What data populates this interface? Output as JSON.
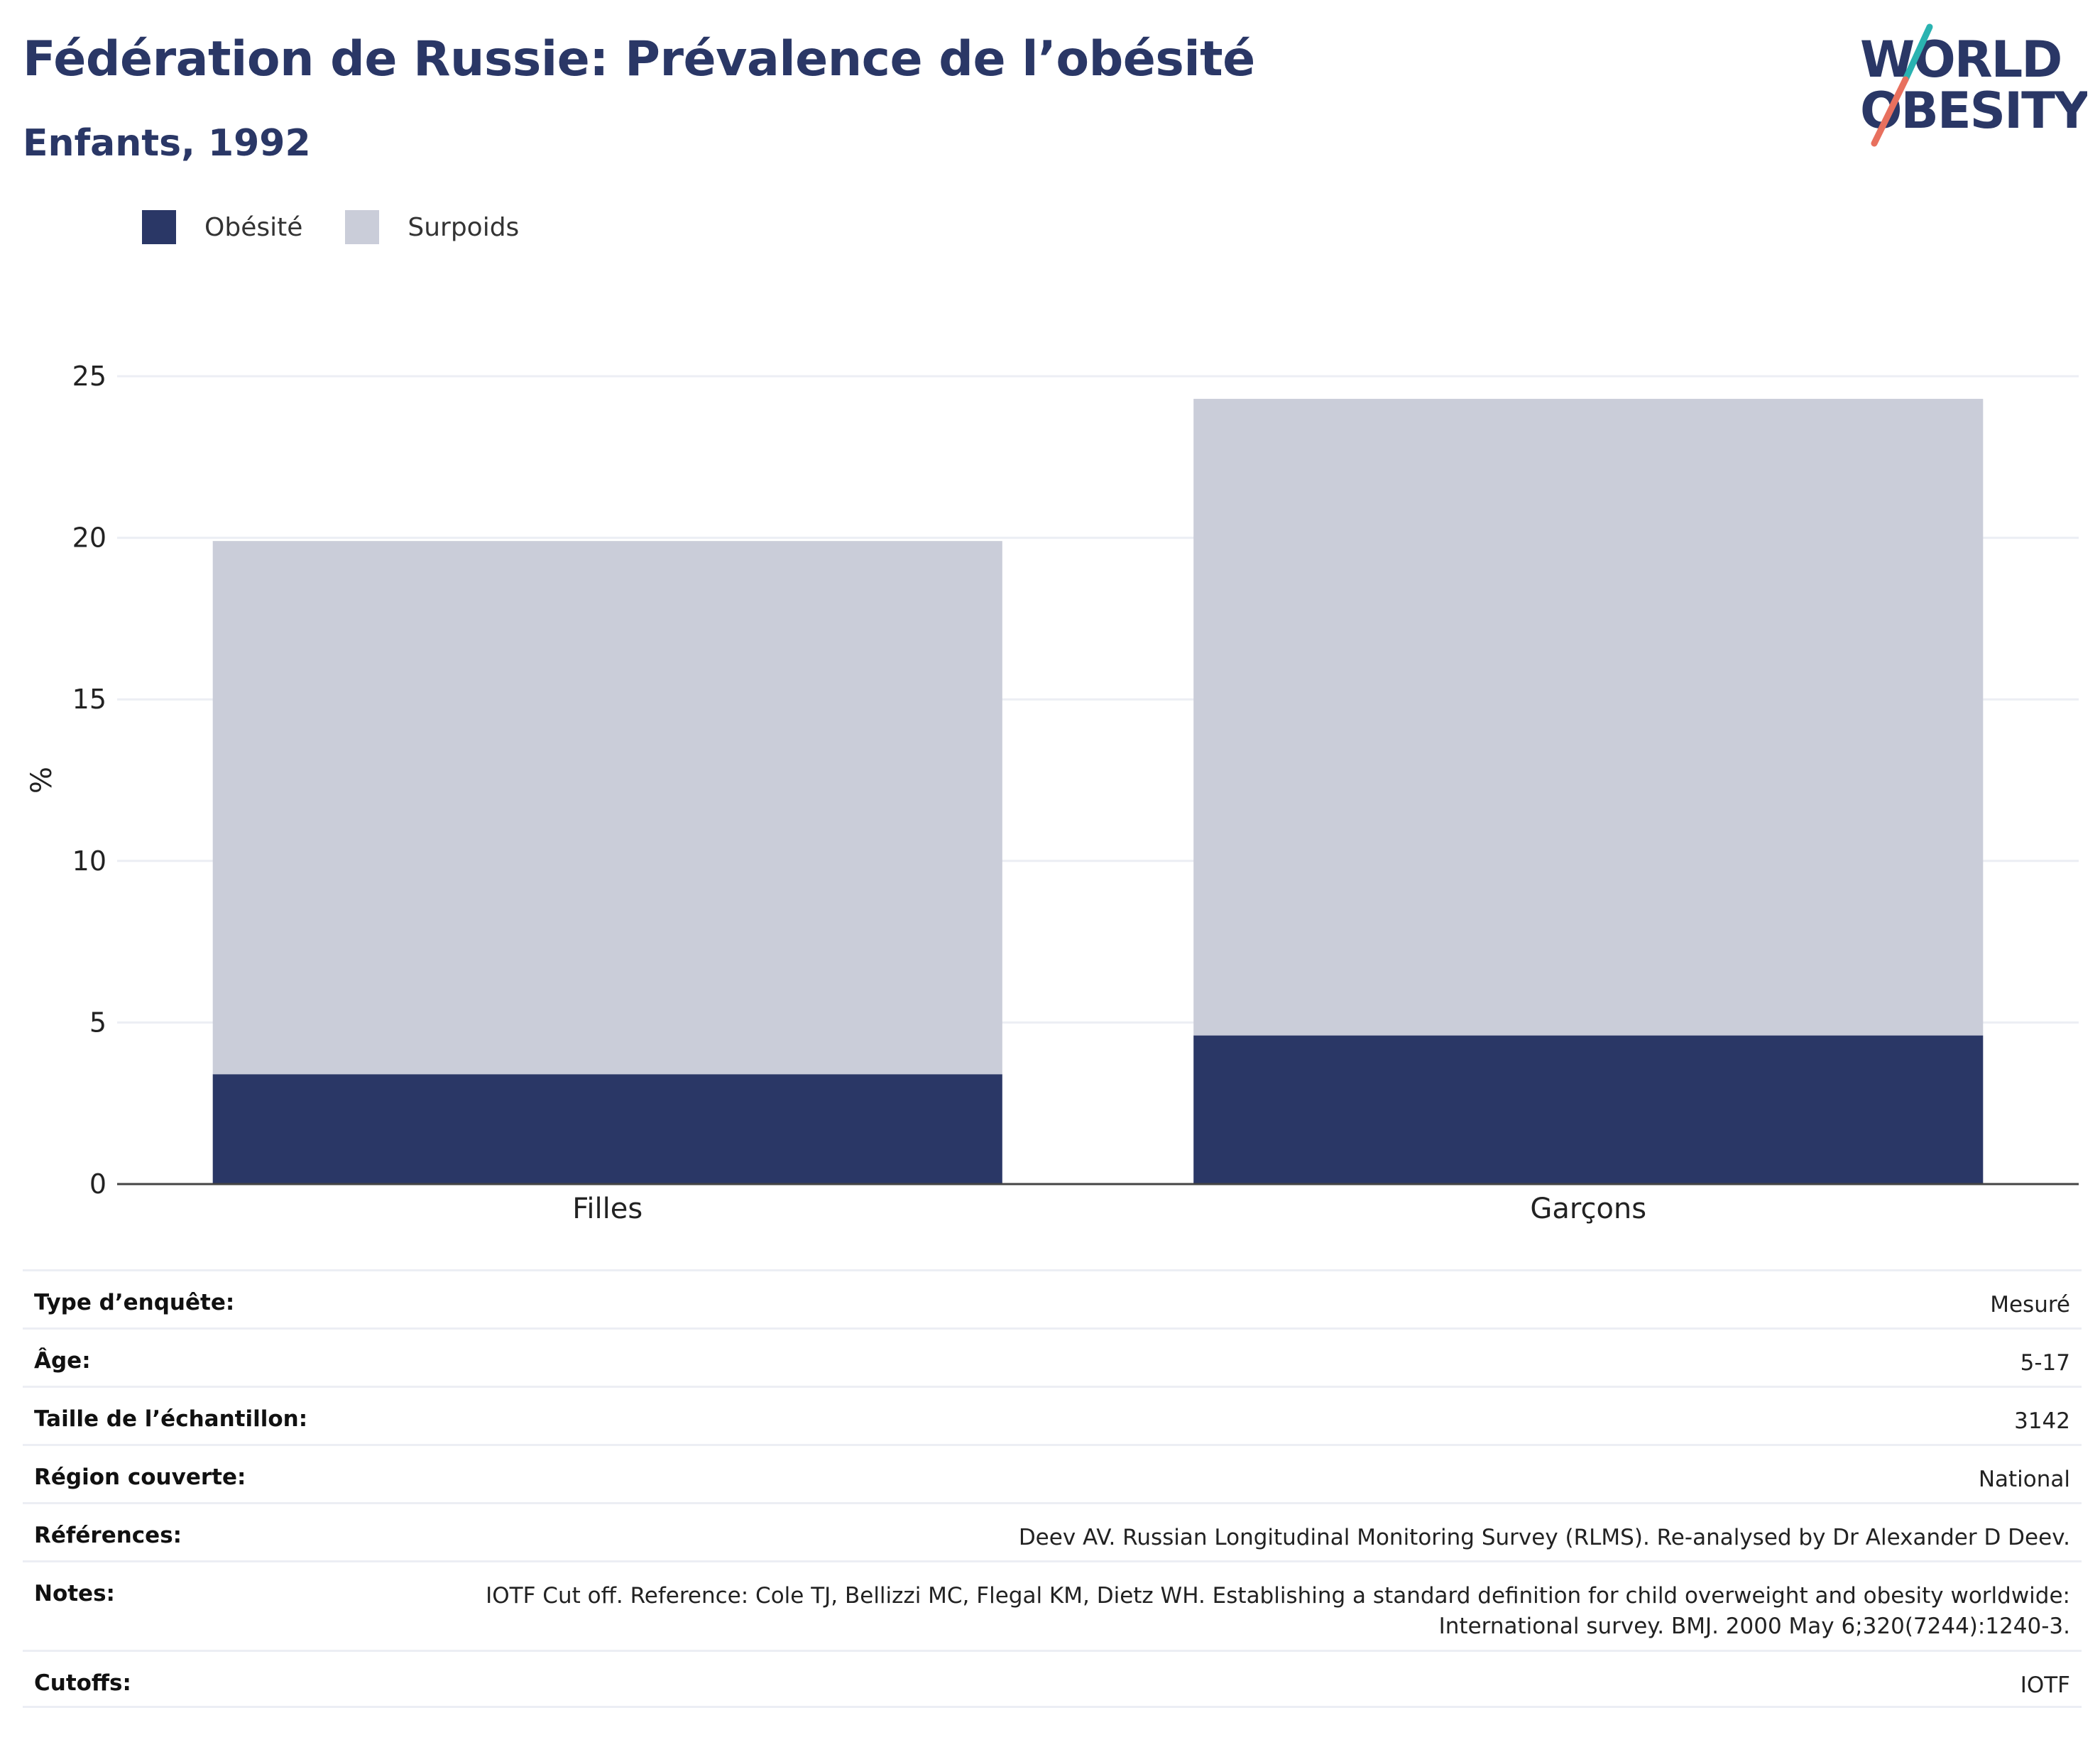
{
  "header": {
    "title": "Fédération de Russie: Prévalence de l’obésité",
    "subtitle": "Enfants, 1992"
  },
  "logo": {
    "line1": "WORLD",
    "line2": "OBESITY",
    "colors": {
      "text": "#2a3766",
      "slash_top": "#2ab3b1",
      "slash_bottom": "#e8705e"
    }
  },
  "legend": [
    {
      "label": "Obésité",
      "color": "#2a3766"
    },
    {
      "label": "Surpoids",
      "color": "#cacdd9"
    }
  ],
  "chart_data": {
    "type": "bar",
    "stacked": true,
    "categories": [
      "Filles",
      "Garçons"
    ],
    "series": [
      {
        "name": "Obésité",
        "color": "#2a3766",
        "values": [
          3.4,
          4.6
        ]
      },
      {
        "name": "Surpoids",
        "color": "#cacdd9",
        "values": [
          16.5,
          19.7
        ]
      }
    ],
    "ylabel": "%",
    "ylim": [
      0,
      25
    ],
    "yticks": [
      0,
      5,
      10,
      15,
      20,
      25
    ],
    "grid": true,
    "legend_position": "top-left"
  },
  "info": [
    {
      "label": "Type d’enquête:",
      "value": "Mesuré"
    },
    {
      "label": "Âge:",
      "value": "5-17"
    },
    {
      "label": "Taille de l’échantillon:",
      "value": "3142"
    },
    {
      "label": "Région couverte:",
      "value": "National"
    },
    {
      "label": "Références:",
      "value": "Deev AV. Russian Longitudinal Monitoring Survey (RLMS). Re-analysed by Dr Alexander D Deev."
    },
    {
      "label": "Notes:",
      "value": "IOTF Cut off. Reference: Cole TJ, Bellizzi MC, Flegal KM, Dietz WH. Establishing a standard definition for child overweight and obesity worldwide: International survey. BMJ. 2000 May 6;320(7244):1240-3."
    },
    {
      "label": "Cutoffs:",
      "value": "IOTF"
    }
  ]
}
